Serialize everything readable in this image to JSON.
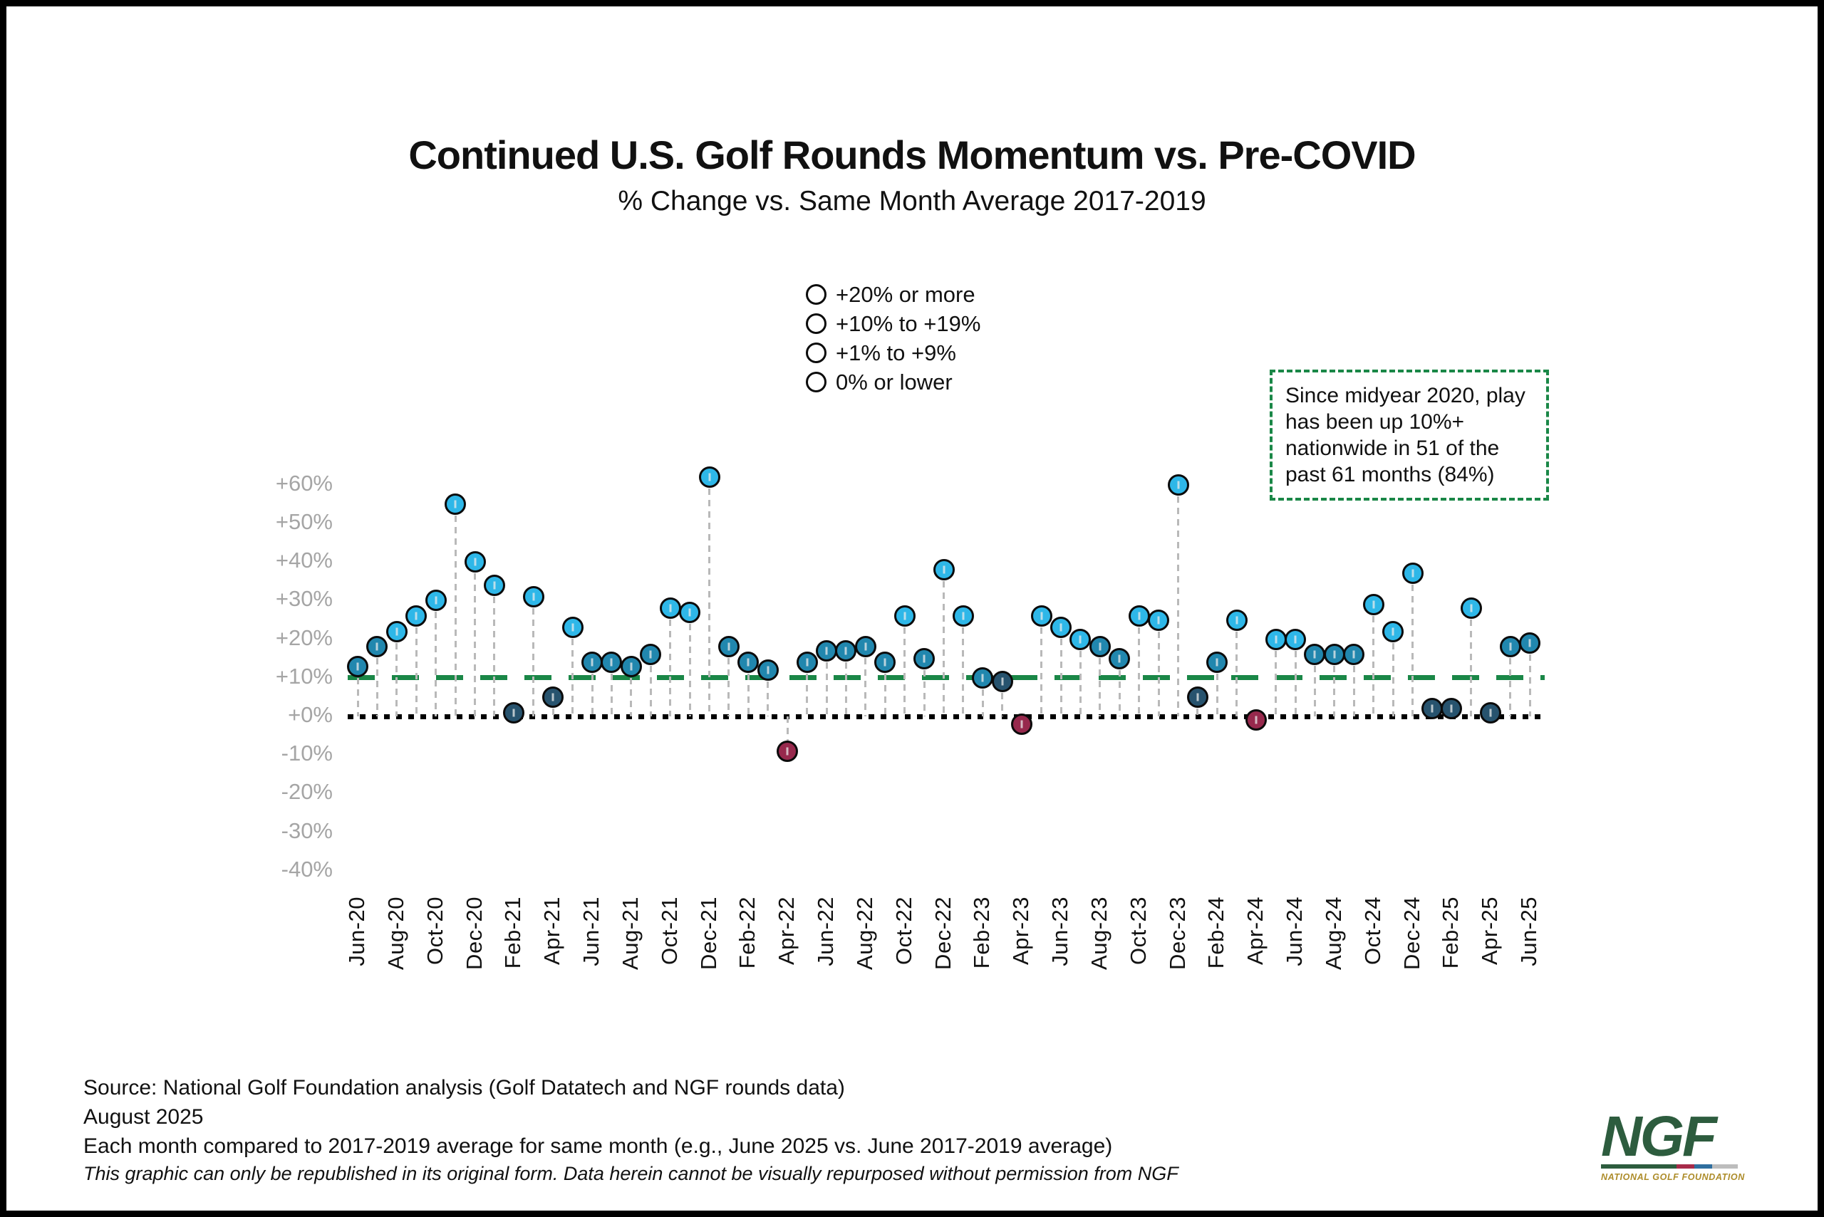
{
  "title": "Continued U.S. Golf Rounds Momentum vs. Pre-COVID",
  "subtitle": "% Change vs. Same Month Average 2017-2019",
  "legend": {
    "items": [
      {
        "label": "+20% or more",
        "color": "#2eb7e8"
      },
      {
        "label": "+10% to +19%",
        "color": "#2187ae"
      },
      {
        "label": "+1% to +9%",
        "color": "#27536e"
      },
      {
        "label": "0% or lower",
        "color": "#97294d"
      }
    ]
  },
  "annotation": {
    "text": "Since midyear 2020, play has been up 10%+ nationwide in 51 of the past 61 months (84%)",
    "border_color": "#1a8747"
  },
  "chart_data": {
    "type": "scatter",
    "title": "Continued U.S. Golf Rounds Momentum vs. Pre-COVID",
    "subtitle": "% Change vs. Same Month Average 2017-2019",
    "x": [
      "Jun-20",
      "Jul-20",
      "Aug-20",
      "Sep-20",
      "Oct-20",
      "Nov-20",
      "Dec-20",
      "Jan-21",
      "Feb-21",
      "Mar-21",
      "Apr-21",
      "May-21",
      "Jun-21",
      "Jul-21",
      "Aug-21",
      "Sep-21",
      "Oct-21",
      "Nov-21",
      "Dec-21",
      "Jan-22",
      "Feb-22",
      "Mar-22",
      "Apr-22",
      "May-22",
      "Jun-22",
      "Jul-22",
      "Aug-22",
      "Sep-22",
      "Oct-22",
      "Nov-22",
      "Dec-22",
      "Jan-23",
      "Feb-23",
      "Mar-23",
      "Apr-23",
      "May-23",
      "Jun-23",
      "Jul-23",
      "Aug-23",
      "Sep-23",
      "Oct-23",
      "Nov-23",
      "Dec-23",
      "Jan-24",
      "Feb-24",
      "Mar-24",
      "Apr-24",
      "May-24",
      "Jun-24",
      "Jul-24",
      "Aug-24",
      "Sep-24",
      "Oct-24",
      "Nov-24",
      "Dec-24",
      "Jan-25",
      "Feb-25",
      "Mar-25",
      "Apr-25",
      "May-25",
      "Jun-25"
    ],
    "y": [
      13,
      18,
      22,
      26,
      30,
      55,
      40,
      34,
      1,
      31,
      5,
      23,
      14,
      14,
      13,
      16,
      28,
      27,
      62,
      18,
      14,
      12,
      -9,
      14,
      17,
      17,
      18,
      14,
      26,
      15,
      38,
      26,
      10,
      9,
      -2,
      26,
      23,
      20,
      18,
      15,
      26,
      25,
      60,
      5,
      14,
      25,
      -1,
      20,
      20,
      16,
      16,
      16,
      29,
      22,
      37,
      2,
      2,
      28,
      1,
      18,
      19
    ],
    "ylim": [
      -40,
      65
    ],
    "yticks": {
      "labels": [
        "+60%",
        "+50%",
        "+40%",
        "+30%",
        "+20%",
        "+10%",
        "+0%",
        "-10%",
        "-20%",
        "-30%",
        "-40%"
      ],
      "values": [
        60,
        50,
        40,
        30,
        20,
        10,
        0,
        -10,
        -20,
        -30,
        -40
      ]
    },
    "x_tick_every": 2,
    "grid": false,
    "legend_position": "top-center",
    "reference_lines": [
      {
        "name": "plus-10-dashed-line",
        "value": 10,
        "style": "dashed",
        "color": "#1a8747"
      },
      {
        "name": "zero-dotted-line",
        "value": 0,
        "style": "dotted",
        "color": "#000000"
      }
    ],
    "point_color_rules": [
      {
        "min": 20,
        "color": "#2eb7e8",
        "label": "+20% or more"
      },
      {
        "min": 10,
        "max": 19,
        "color": "#2187ae",
        "label": "+10% to +19%"
      },
      {
        "min": 1,
        "max": 9,
        "color": "#27536e",
        "label": "+1% to +9%"
      },
      {
        "max": 0,
        "color": "#97294d",
        "label": "0% or lower"
      }
    ]
  },
  "source": {
    "line1": "Source: National Golf Foundation analysis (Golf Datatech and NGF rounds data)",
    "line2": "August 2025",
    "line3": "Each month compared to 2017-2019 average for same month (e.g., June 2025 vs. June 2017-2019 average)",
    "line4": "This graphic can only be republished in its original form. Data herein cannot be visually repurposed without permission from NGF"
  },
  "logo": {
    "text": "NGF",
    "subtext": "NATIONAL GOLF FOUNDATION",
    "green": "#2d5c3e",
    "gold": "#ad8c2a",
    "bar_colors": [
      "#2d5c3e",
      "#a72b4a",
      "#2f6f9f",
      "#bdbdbd"
    ]
  }
}
